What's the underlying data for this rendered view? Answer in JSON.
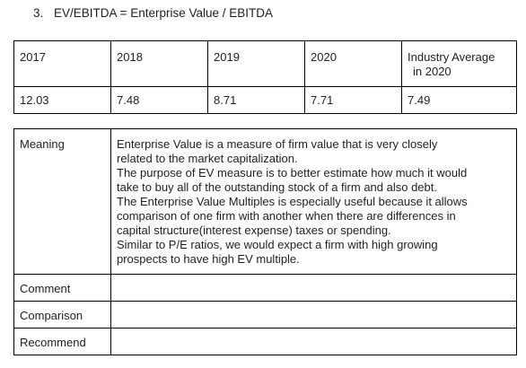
{
  "heading": {
    "number": "3.",
    "text": "EV/EBITDA = Enterprise Value / EBITDA"
  },
  "metrics_table": {
    "headers": [
      "2017",
      "2018",
      "2019",
      "2020",
      "Industry Average\nin 2020"
    ],
    "header_lines": {
      "industry_line1": "Industry Average",
      "industry_line2": "in 2020"
    },
    "values": [
      "12.03",
      "7.48",
      "8.71",
      "7.71",
      "7.49"
    ]
  },
  "analysis_table": {
    "meaning_label": "Meaning",
    "meaning_lines": [
      "Enterprise Value is a measure of firm value that is very closely",
      "related to the market capitalization.",
      "The purpose of EV measure is to better estimate how much it would",
      "take to buy all of the outstanding stock of a firm and also debt.",
      "The Enterprise Value Multiples is especially useful because it allows",
      "comparison of one firm with another when there are differences in",
      "capital structure(interest expense) taxes or spending.",
      "Similar to P/E ratios, we would expect a firm with high growing",
      "prospects to have high EV multiple."
    ],
    "comment_label": "Comment",
    "comment_value": "",
    "comparison_label": "Comparison",
    "comparison_value": "",
    "recommend_label": "Recommend",
    "recommend_value": ""
  }
}
